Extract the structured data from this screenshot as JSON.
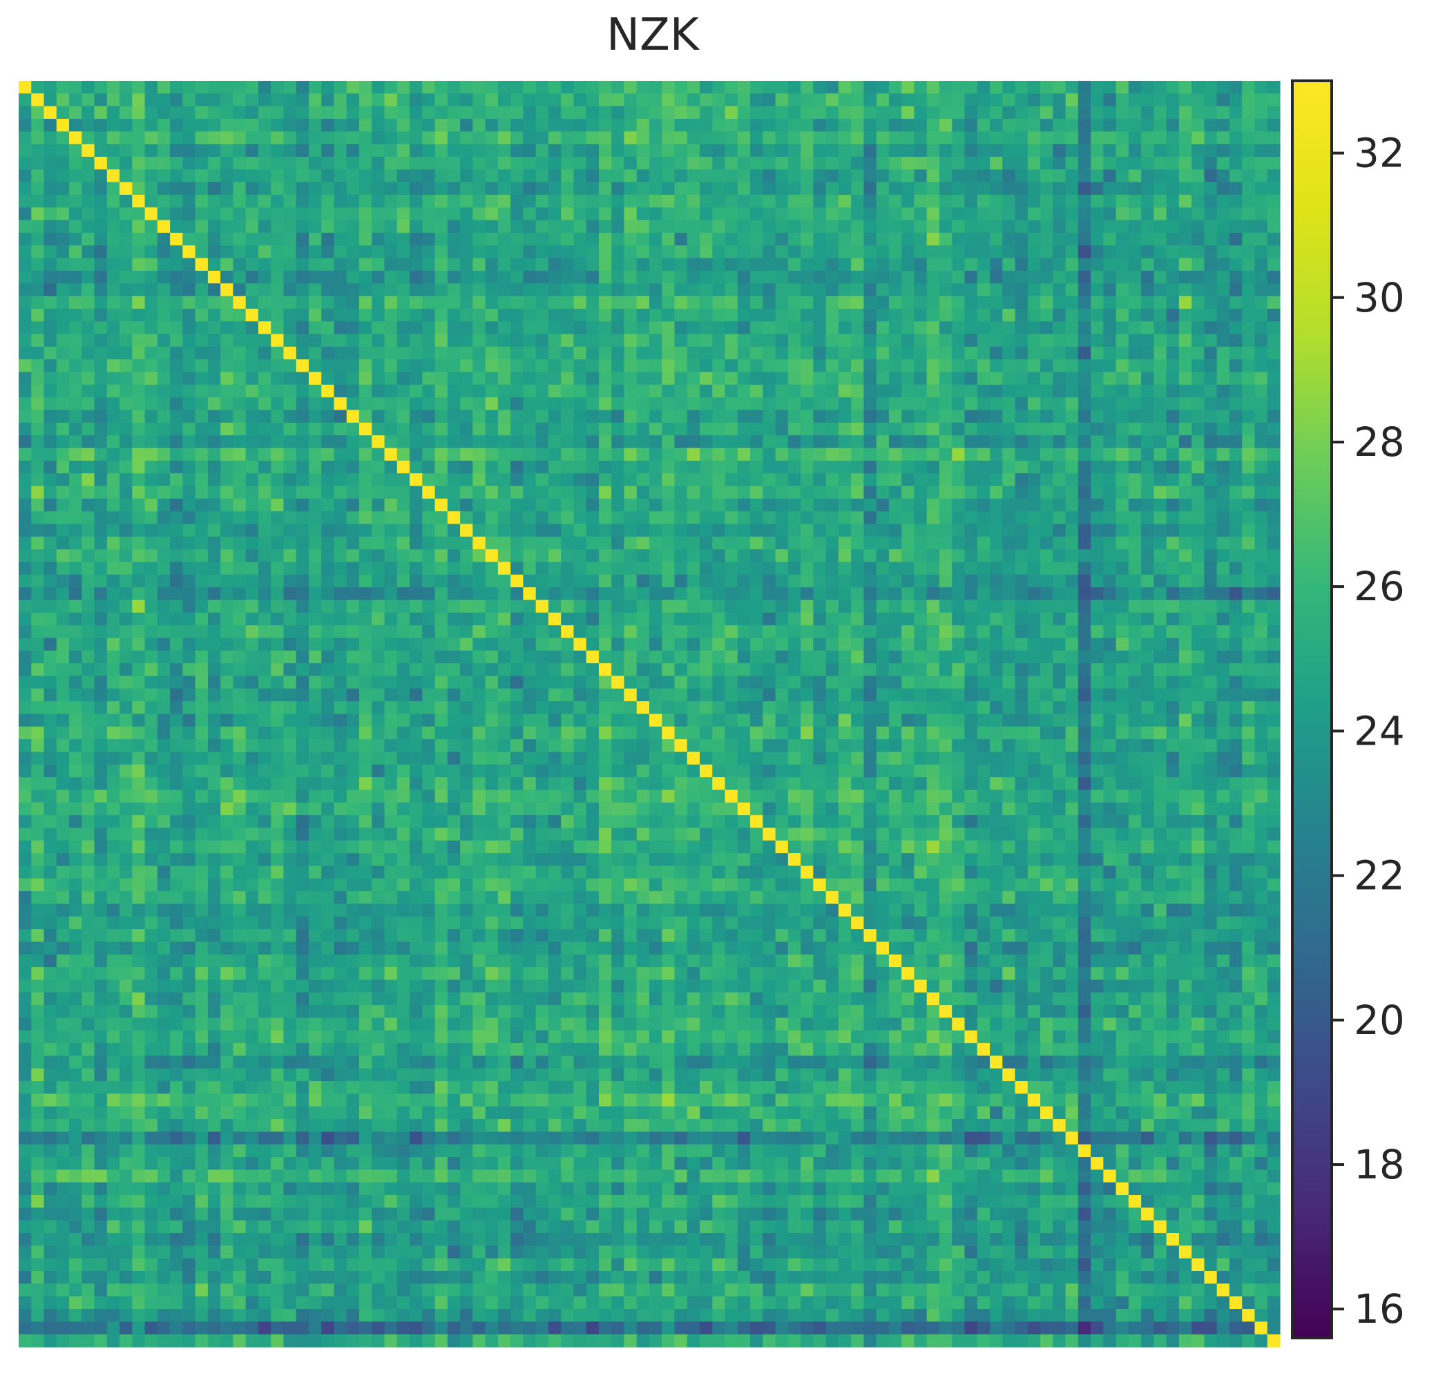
{
  "chart_data": {
    "type": "heatmap",
    "title": "NZK",
    "xlabel": "",
    "ylabel": "",
    "rows": 100,
    "cols": 100,
    "colormap": "viridis",
    "colorbar": {
      "range": [
        15.6,
        33.0
      ],
      "ticks": [
        16,
        18,
        20,
        22,
        24,
        26,
        28,
        30,
        32
      ],
      "tick_labels": [
        "16",
        "18",
        "20",
        "22",
        "24",
        "26",
        "28",
        "30",
        "32"
      ]
    },
    "diagonal_value": 33.0,
    "off_diagonal_typical_range": [
      19,
      30
    ],
    "off_diagonal_mean": 24.8,
    "notable_low_rows": [
      83,
      98
    ],
    "notable_low_cols": [
      84
    ],
    "grid": false,
    "x_tick_labels_shown": false,
    "y_tick_labels_shown": false
  }
}
